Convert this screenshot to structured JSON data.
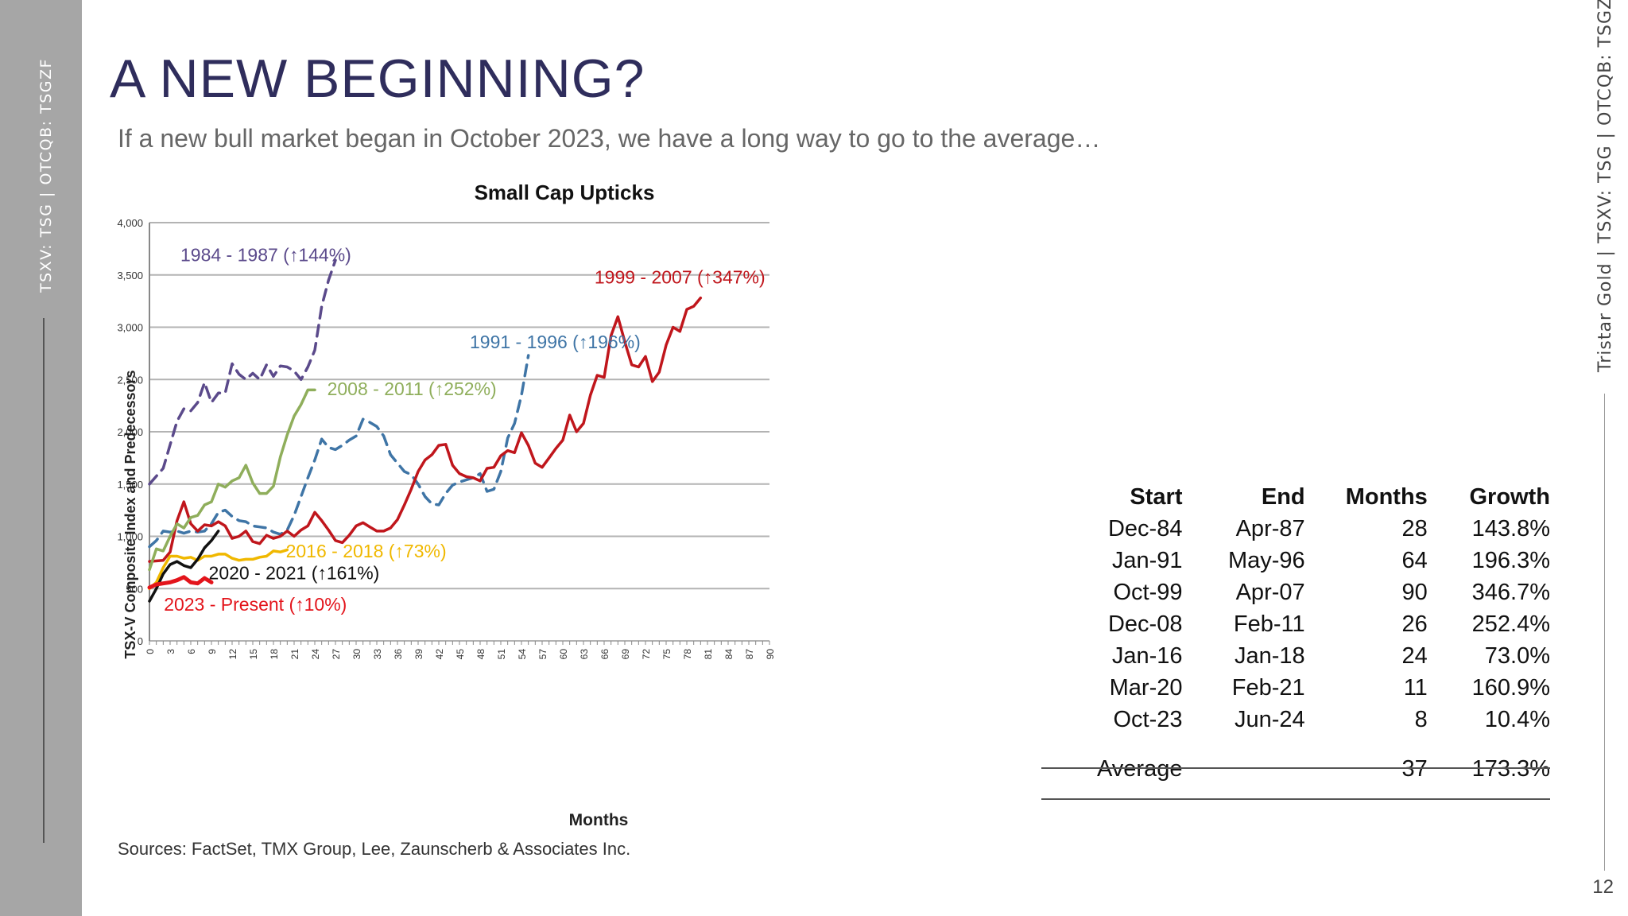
{
  "sidebar": {
    "ticker": "TSXV: TSG | OTCQB: TSGZF"
  },
  "right_margin": {
    "label": "Tristar Gold | TSXV: TSG | OTCQB: TSGZF"
  },
  "header": {
    "title": "A NEW BEGINNING?",
    "subtitle": "If a new bull market began in October 2023, we have a long way to go to the average…"
  },
  "footer": {
    "sources": "Sources: FactSet, TMX Group, Lee, Zaunscherb & Associates Inc.",
    "page_number": "12"
  },
  "chart_data": {
    "type": "line",
    "title": "Small Cap Upticks",
    "xlabel": "Months",
    "ylabel": "TSX-V Composite Index and Predecessors",
    "xlim": [
      0,
      90
    ],
    "ylim": [
      0,
      4000
    ],
    "x_ticks": [
      0,
      3,
      6,
      9,
      12,
      15,
      18,
      21,
      24,
      27,
      30,
      33,
      36,
      39,
      42,
      45,
      48,
      51,
      54,
      57,
      60,
      63,
      66,
      69,
      72,
      75,
      78,
      81,
      84,
      87,
      90
    ],
    "y_ticks": [
      0,
      500,
      1000,
      1500,
      2000,
      2500,
      3000,
      3500,
      4000
    ],
    "y_tick_labels": [
      "0",
      "500",
      "1,000",
      "1,500",
      "2,000",
      "2,500",
      "3,000",
      "3,500",
      "4,000"
    ],
    "grid": "horizontal",
    "series": [
      {
        "name": "1984 - 1987 (↑144%)",
        "color": "#5b4a8b",
        "style": "dashed",
        "points": [
          [
            0,
            1500
          ],
          [
            2,
            1650
          ],
          [
            4,
            2100
          ],
          [
            5,
            2220
          ],
          [
            6,
            2200
          ],
          [
            7,
            2280
          ],
          [
            8,
            2470
          ],
          [
            9,
            2280
          ],
          [
            10,
            2370
          ],
          [
            11,
            2370
          ],
          [
            12,
            2650
          ],
          [
            13,
            2550
          ],
          [
            14,
            2500
          ],
          [
            15,
            2560
          ],
          [
            16,
            2500
          ],
          [
            17,
            2640
          ],
          [
            18,
            2530
          ],
          [
            19,
            2630
          ],
          [
            20,
            2620
          ],
          [
            21,
            2580
          ],
          [
            22,
            2500
          ],
          [
            23,
            2620
          ],
          [
            24,
            2780
          ],
          [
            25,
            3200
          ],
          [
            26,
            3450
          ],
          [
            27,
            3640
          ]
        ],
        "label": "1984 - 1987 (↑144%)",
        "label_at": [
          4.5,
          3630
        ]
      },
      {
        "name": "1991 - 1996 (↑196%)",
        "color": "#3f75a6",
        "style": "dashed",
        "points": [
          [
            0,
            900
          ],
          [
            1,
            960
          ],
          [
            2,
            1050
          ],
          [
            3,
            1040
          ],
          [
            4,
            1050
          ],
          [
            5,
            1030
          ],
          [
            6,
            1050
          ],
          [
            7,
            1040
          ],
          [
            8,
            1050
          ],
          [
            9,
            1120
          ],
          [
            10,
            1230
          ],
          [
            11,
            1250
          ],
          [
            12,
            1190
          ],
          [
            13,
            1150
          ],
          [
            14,
            1140
          ],
          [
            15,
            1100
          ],
          [
            16,
            1090
          ],
          [
            17,
            1080
          ],
          [
            18,
            1040
          ],
          [
            19,
            1020
          ],
          [
            20,
            1060
          ],
          [
            21,
            1200
          ],
          [
            22,
            1380
          ],
          [
            23,
            1560
          ],
          [
            24,
            1730
          ],
          [
            25,
            1930
          ],
          [
            26,
            1850
          ],
          [
            27,
            1830
          ],
          [
            28,
            1870
          ],
          [
            29,
            1920
          ],
          [
            30,
            1960
          ],
          [
            31,
            2120
          ],
          [
            32,
            2090
          ],
          [
            33,
            2050
          ],
          [
            34,
            1960
          ],
          [
            35,
            1780
          ],
          [
            36,
            1700
          ],
          [
            37,
            1620
          ],
          [
            38,
            1590
          ],
          [
            39,
            1500
          ],
          [
            40,
            1380
          ],
          [
            41,
            1310
          ],
          [
            42,
            1300
          ],
          [
            43,
            1410
          ],
          [
            44,
            1490
          ],
          [
            45,
            1520
          ],
          [
            46,
            1540
          ],
          [
            47,
            1560
          ],
          [
            48,
            1600
          ],
          [
            49,
            1430
          ],
          [
            50,
            1450
          ],
          [
            51,
            1620
          ],
          [
            52,
            1940
          ],
          [
            53,
            2080
          ],
          [
            54,
            2350
          ],
          [
            55,
            2730
          ]
        ],
        "label": "1991 - 1996 (↑196%)",
        "label_at": [
          46.5,
          2800
        ]
      },
      {
        "name": "1999 - 2007 (↑347%)",
        "color": "#c0161c",
        "style": "solid",
        "points": [
          [
            0,
            760
          ],
          [
            2,
            770
          ],
          [
            3,
            850
          ],
          [
            4,
            1150
          ],
          [
            5,
            1330
          ],
          [
            6,
            1120
          ],
          [
            7,
            1050
          ],
          [
            8,
            1110
          ],
          [
            9,
            1100
          ],
          [
            10,
            1140
          ],
          [
            11,
            1100
          ],
          [
            12,
            980
          ],
          [
            13,
            1000
          ],
          [
            14,
            1050
          ],
          [
            15,
            950
          ],
          [
            16,
            930
          ],
          [
            17,
            1010
          ],
          [
            18,
            980
          ],
          [
            19,
            1000
          ],
          [
            20,
            1050
          ],
          [
            21,
            1000
          ],
          [
            22,
            1060
          ],
          [
            23,
            1100
          ],
          [
            24,
            1230
          ],
          [
            25,
            1150
          ],
          [
            26,
            1060
          ],
          [
            27,
            960
          ],
          [
            28,
            940
          ],
          [
            29,
            1010
          ],
          [
            30,
            1100
          ],
          [
            31,
            1130
          ],
          [
            32,
            1090
          ],
          [
            33,
            1050
          ],
          [
            34,
            1050
          ],
          [
            35,
            1080
          ],
          [
            36,
            1160
          ],
          [
            37,
            1300
          ],
          [
            38,
            1450
          ],
          [
            39,
            1620
          ],
          [
            40,
            1730
          ],
          [
            41,
            1780
          ],
          [
            42,
            1870
          ],
          [
            43,
            1880
          ],
          [
            44,
            1680
          ],
          [
            45,
            1600
          ],
          [
            46,
            1570
          ],
          [
            47,
            1560
          ],
          [
            48,
            1530
          ],
          [
            49,
            1650
          ],
          [
            50,
            1660
          ],
          [
            51,
            1770
          ],
          [
            52,
            1820
          ],
          [
            53,
            1800
          ],
          [
            54,
            1990
          ],
          [
            55,
            1870
          ],
          [
            56,
            1700
          ],
          [
            57,
            1660
          ],
          [
            58,
            1750
          ],
          [
            59,
            1840
          ],
          [
            60,
            1920
          ],
          [
            61,
            2160
          ],
          [
            62,
            2000
          ],
          [
            63,
            2080
          ],
          [
            64,
            2350
          ],
          [
            65,
            2540
          ],
          [
            66,
            2520
          ],
          [
            67,
            2920
          ],
          [
            68,
            3100
          ],
          [
            69,
            2860
          ],
          [
            70,
            2640
          ],
          [
            71,
            2620
          ],
          [
            72,
            2720
          ],
          [
            73,
            2480
          ],
          [
            74,
            2570
          ],
          [
            75,
            2830
          ],
          [
            76,
            3000
          ],
          [
            77,
            2960
          ],
          [
            78,
            3170
          ],
          [
            79,
            3200
          ],
          [
            80,
            3280
          ]
        ],
        "label": "1999 - 2007 (↑347%)",
        "label_at": [
          64.6,
          3420
        ]
      },
      {
        "name": "2008 - 2011 (↑252%)",
        "color": "#8fae5b",
        "style": "solid",
        "points": [
          [
            0,
            680
          ],
          [
            1,
            880
          ],
          [
            2,
            860
          ],
          [
            3,
            1000
          ],
          [
            4,
            1120
          ],
          [
            5,
            1080
          ],
          [
            6,
            1180
          ],
          [
            7,
            1200
          ],
          [
            8,
            1300
          ],
          [
            9,
            1330
          ],
          [
            10,
            1500
          ],
          [
            11,
            1470
          ],
          [
            12,
            1530
          ],
          [
            13,
            1560
          ],
          [
            14,
            1680
          ],
          [
            15,
            1510
          ],
          [
            16,
            1410
          ],
          [
            17,
            1410
          ],
          [
            18,
            1480
          ],
          [
            19,
            1760
          ],
          [
            20,
            1970
          ],
          [
            21,
            2150
          ],
          [
            22,
            2260
          ],
          [
            23,
            2400
          ],
          [
            24,
            2400
          ]
        ],
        "label": "2008 - 2011 (↑252%)",
        "label_at": [
          25.8,
          2350
        ]
      },
      {
        "name": "2016 - 2018 (↑73%)",
        "color": "#f0b800",
        "style": "solid",
        "points": [
          [
            0,
            500
          ],
          [
            1,
            560
          ],
          [
            2,
            700
          ],
          [
            3,
            810
          ],
          [
            4,
            810
          ],
          [
            5,
            790
          ],
          [
            6,
            800
          ],
          [
            7,
            770
          ],
          [
            8,
            810
          ],
          [
            9,
            810
          ],
          [
            10,
            830
          ],
          [
            11,
            830
          ],
          [
            12,
            790
          ],
          [
            13,
            770
          ],
          [
            14,
            780
          ],
          [
            15,
            780
          ],
          [
            16,
            800
          ],
          [
            17,
            810
          ],
          [
            18,
            860
          ],
          [
            19,
            850
          ],
          [
            20,
            870
          ]
        ],
        "label": "2016 - 2018 (↑73%)",
        "label_at": [
          19.8,
          800
        ]
      },
      {
        "name": "2020 - 2021 (↑161%)",
        "color": "#111111",
        "style": "solid",
        "points": [
          [
            0,
            380
          ],
          [
            1,
            500
          ],
          [
            2,
            640
          ],
          [
            3,
            730
          ],
          [
            4,
            760
          ],
          [
            5,
            720
          ],
          [
            6,
            700
          ],
          [
            7,
            780
          ],
          [
            8,
            890
          ],
          [
            9,
            960
          ],
          [
            10,
            1050
          ]
        ],
        "label": "2020 - 2021 (↑161%)",
        "label_at": [
          8.6,
          590
        ]
      },
      {
        "name": "2023 - Present (↑10%)",
        "color": "#e3141b",
        "style": "solid",
        "width": 5,
        "points": [
          [
            0,
            510
          ],
          [
            1,
            540
          ],
          [
            2,
            550
          ],
          [
            3,
            560
          ],
          [
            4,
            580
          ],
          [
            5,
            610
          ],
          [
            6,
            560
          ],
          [
            7,
            550
          ],
          [
            8,
            600
          ],
          [
            9,
            560
          ]
        ],
        "label": "2023 - Present (↑10%)",
        "label_at": [
          2.1,
          290
        ]
      }
    ]
  },
  "table": {
    "headers": [
      "Start",
      "End",
      "Months",
      "Growth"
    ],
    "rows": [
      [
        "Dec-84",
        "Apr-87",
        "28",
        "143.8%"
      ],
      [
        "Jan-91",
        "May-96",
        "64",
        "196.3%"
      ],
      [
        "Oct-99",
        "Apr-07",
        "90",
        "346.7%"
      ],
      [
        "Dec-08",
        "Feb-11",
        "26",
        "252.4%"
      ],
      [
        "Jan-16",
        "Jan-18",
        "24",
        "73.0%"
      ],
      [
        "Mar-20",
        "Feb-21",
        "11",
        "160.9%"
      ],
      [
        "Oct-23",
        "Jun-24",
        "8",
        "10.4%"
      ]
    ],
    "average": {
      "label": "Average",
      "months": "37",
      "growth": "173.3%"
    }
  }
}
